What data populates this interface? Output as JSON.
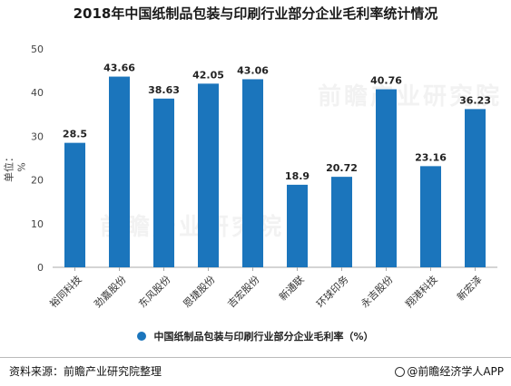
{
  "title": "2018年中国纸制品包装与印刷行业部分企业毛利率统计情况",
  "footer": {
    "source": "资料来源：前瞻产业研究院整理",
    "credit": "@前瞻经济学人APP"
  },
  "watermark": "前瞻产业研究院",
  "colors": {
    "bar": "#1b75bc",
    "axis": "#aaaaaa",
    "text": "#333333"
  },
  "chart_data": {
    "type": "bar",
    "title": "2018年中国纸制品包装与印刷行业部分企业毛利率统计情况",
    "ylabel": "单位：%",
    "xlabel": "",
    "ylim": [
      0,
      50
    ],
    "yticks": [
      0,
      10,
      20,
      30,
      40,
      50
    ],
    "grid": false,
    "legend_position": "bottom",
    "categories": [
      "裕同科技",
      "劲嘉股份",
      "东风股份",
      "恩捷股份",
      "吉宏股份",
      "新通联",
      "环球印务",
      "永吉股份",
      "翔港科技",
      "新宏泽"
    ],
    "series": [
      {
        "name": "中国纸制品包装与印刷行业部分企业毛利率（%）",
        "values": [
          28.5,
          43.66,
          38.63,
          42.05,
          43.06,
          18.9,
          20.72,
          40.76,
          23.16,
          36.23
        ],
        "labels": [
          "28.5",
          "43.66",
          "38.63",
          "42.05",
          "43.06",
          "18.9",
          "20.72",
          "40.76",
          "23.16",
          "36.23"
        ]
      }
    ]
  }
}
